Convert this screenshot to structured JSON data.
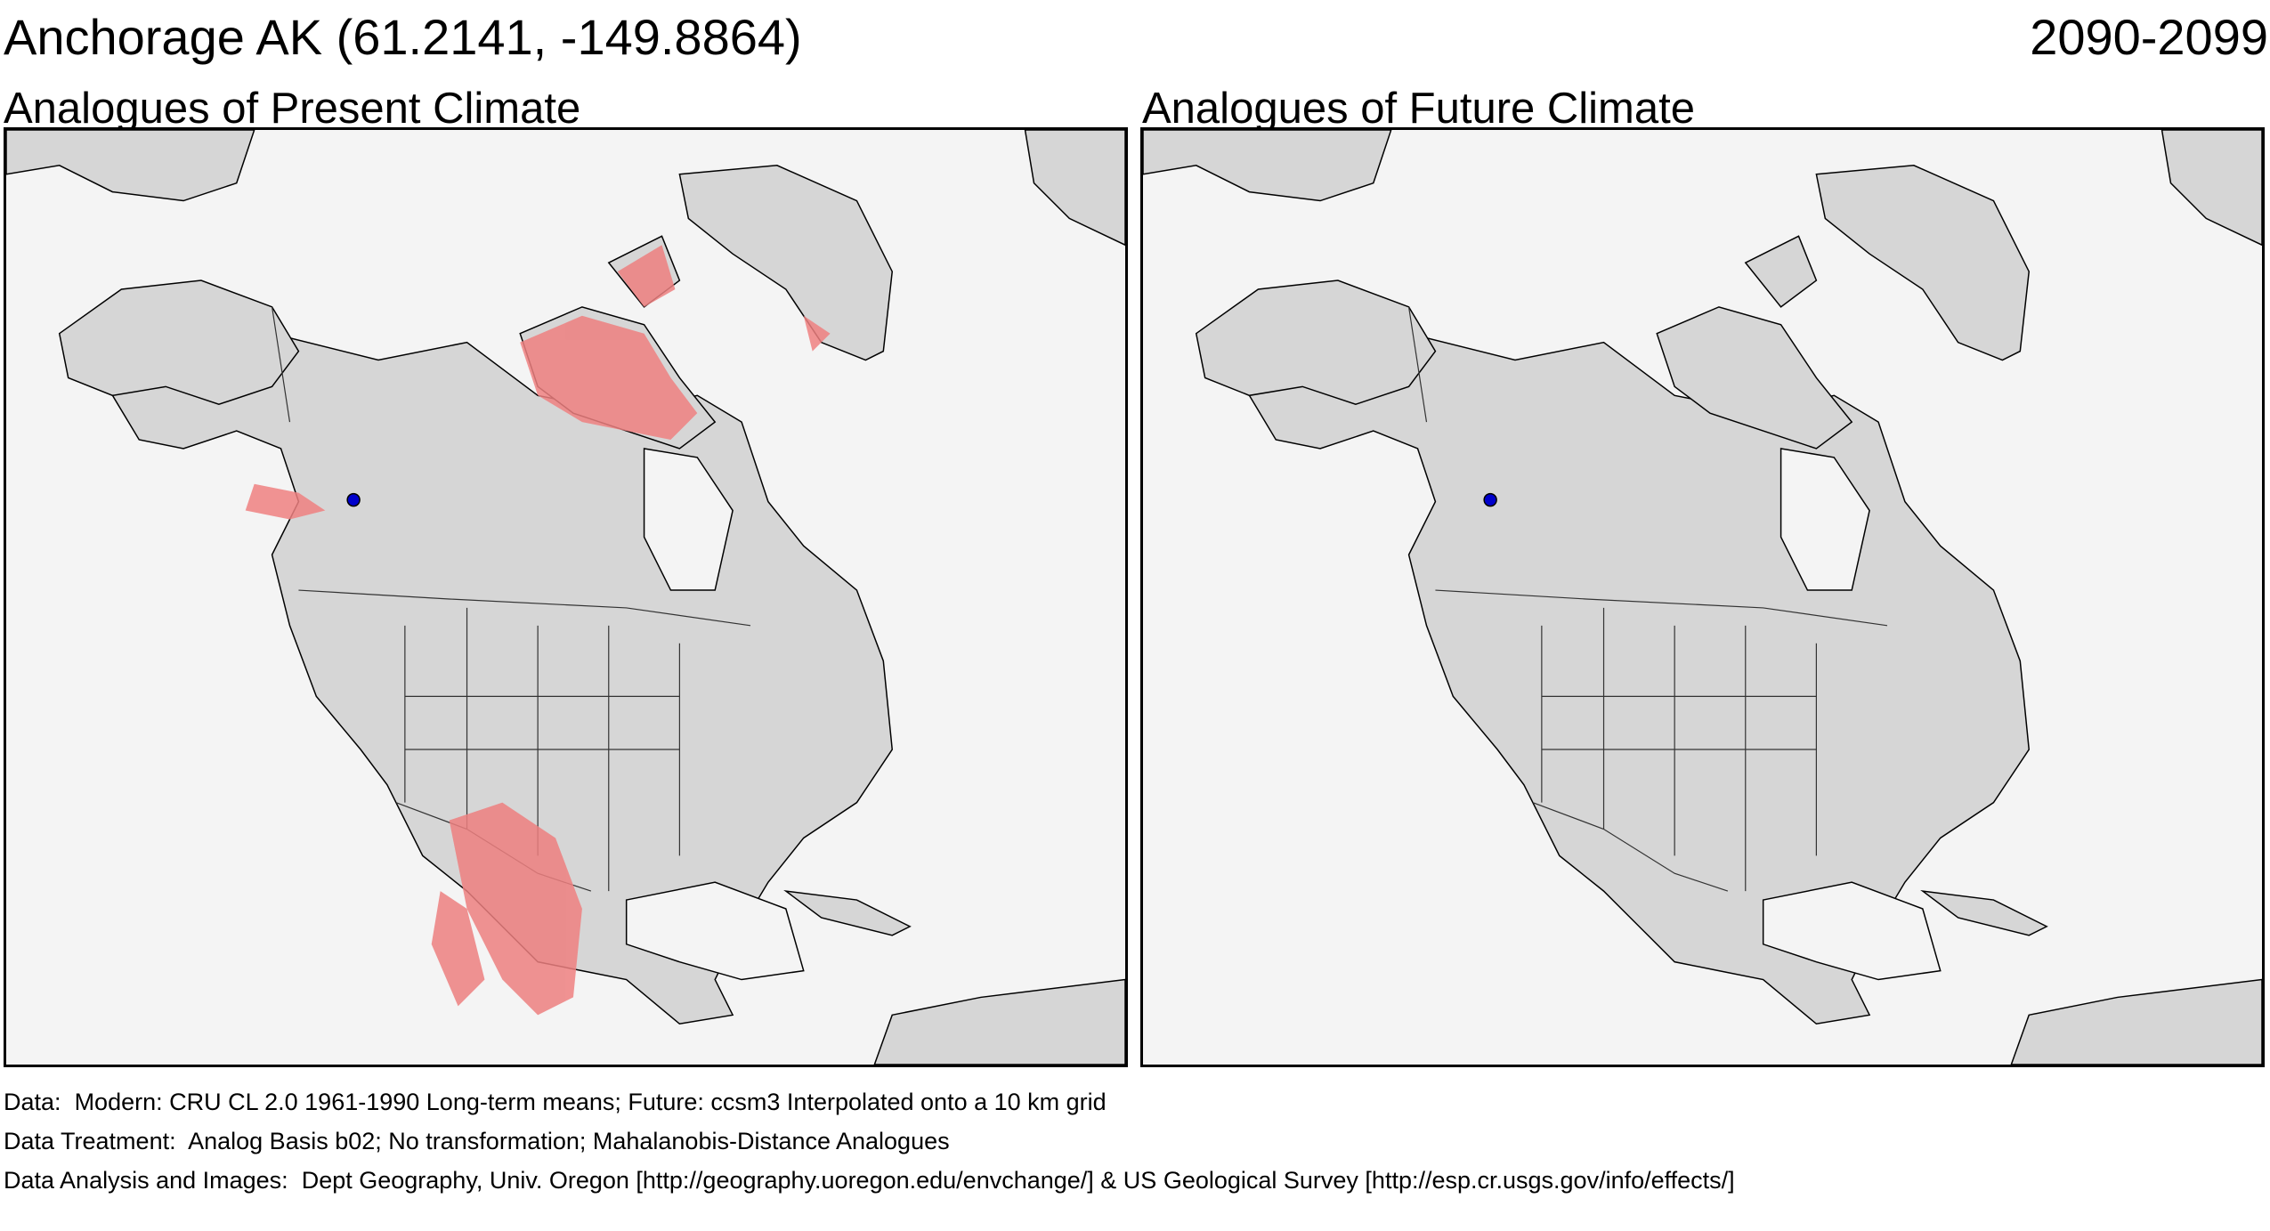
{
  "header": {
    "location_title": "Anchorage AK  (61.2141, -149.8864)",
    "period": "2090-2099"
  },
  "panels": [
    {
      "title": "Analogues of Present Climate",
      "analog_color": "#ee8080",
      "has_analogues": true
    },
    {
      "title": "Analogues of Future Climate",
      "analog_color": "#ee8080",
      "has_analogues": false
    }
  ],
  "site_marker": {
    "lat": 61.2141,
    "lon": -149.8864,
    "color": "#0000cc"
  },
  "colors": {
    "ocean": "#f4f4f4",
    "land": "#d6d6d6",
    "ice": "#e8e8e8",
    "border": "#000000"
  },
  "footer": {
    "data_label": "Data:",
    "data_text": "Modern: CRU CL 2.0 1961-1990 Long-term means; Future: ccsm3 Interpolated onto a 10 km grid",
    "treatment_label": "Data Treatment:",
    "treatment_text": "Analog Basis b02; No transformation; Mahalanobis-Distance Analogues",
    "analysis_label": "Data Analysis and Images:",
    "analysis_text": "Dept Geography, Univ. Oregon [http://geography.uoregon.edu/envchange/] & US Geological Survey [http://esp.cr.usgs.gov/info/effects/]"
  }
}
